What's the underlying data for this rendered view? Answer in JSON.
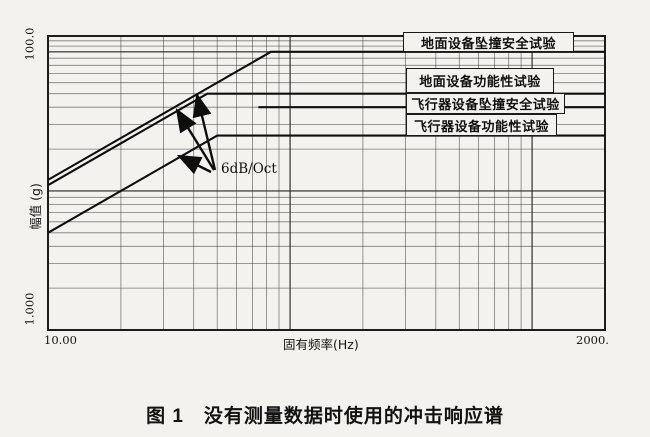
{
  "caption": "图 1　没有测量数据时使用的冲击响应谱",
  "chart_data": {
    "type": "line",
    "title": "",
    "x_axis": {
      "label": "固有频率(Hz)",
      "scale": "log",
      "min": 10,
      "max": 2000,
      "tick_labels": {
        "left": "10.00",
        "right": "2000."
      }
    },
    "y_axis": {
      "label": "幅值 (g)",
      "scale": "log",
      "min": 1,
      "max": 130,
      "tick_labels": {
        "top": "100.0",
        "bottom": "1.000"
      }
    },
    "grid": "log-log full grid",
    "slope_annotation": "6dB/Oct",
    "series": [
      {
        "name": "地面设备坠撞安全试验",
        "plateau_g": 100,
        "points": [
          [
            10,
            12
          ],
          [
            83.3,
            100
          ],
          [
            2000,
            100
          ]
        ]
      },
      {
        "name": "地面设备功能性试验",
        "plateau_g": 50,
        "points": [
          [
            10,
            11
          ],
          [
            45.5,
            50
          ],
          [
            2000,
            50
          ]
        ]
      },
      {
        "name": "飞行器设备坠撞安全试验",
        "plateau_g": 40,
        "points": [
          [
            74,
            40
          ],
          [
            2000,
            40
          ]
        ]
      },
      {
        "name": "飞行器设备功能性试验",
        "plateau_g": 25,
        "points": [
          [
            10,
            5
          ],
          [
            50,
            25
          ],
          [
            2000,
            25
          ]
        ]
      }
    ],
    "legend_position": "boxed labels inside plot, right side"
  }
}
